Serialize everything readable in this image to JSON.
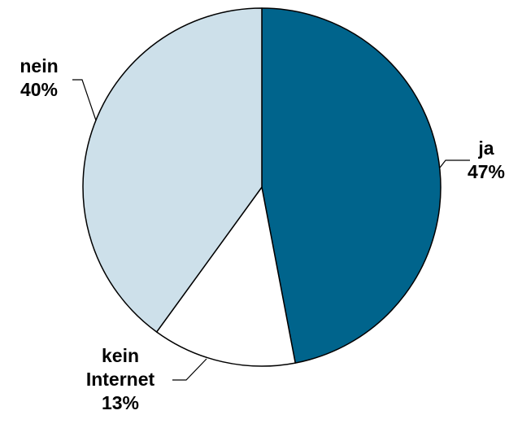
{
  "chart_data": {
    "type": "pie",
    "title": "",
    "slices": [
      {
        "label_lines": [
          "ja"
        ],
        "value_label": "47%",
        "value": 47,
        "color": "#00648c"
      },
      {
        "label_lines": [
          "kein",
          "Internet"
        ],
        "value_label": "13%",
        "value": 13,
        "color": "#ffffff"
      },
      {
        "label_lines": [
          "nein"
        ],
        "value_label": "40%",
        "value": 40,
        "color": "#cde0ea"
      }
    ],
    "outline_color": "#000000",
    "start_angle_deg": 0,
    "direction": "clockwise"
  }
}
